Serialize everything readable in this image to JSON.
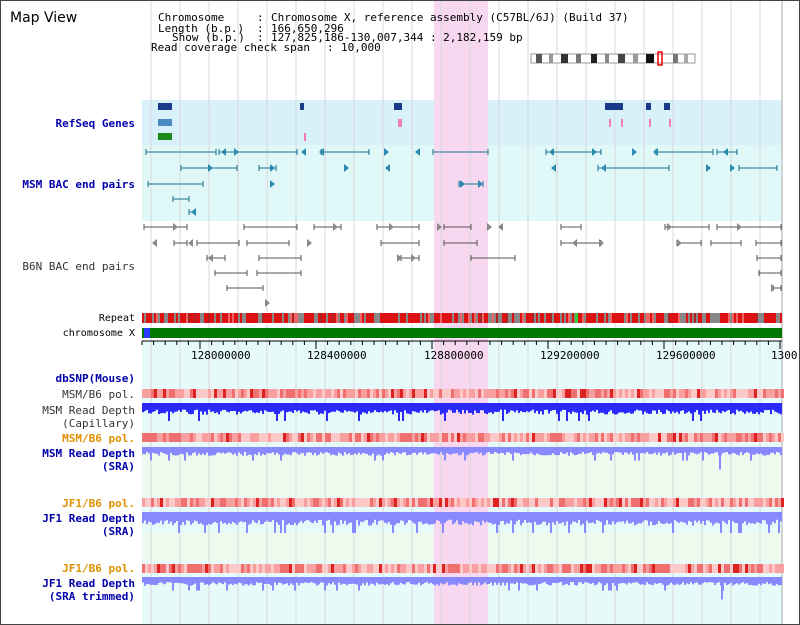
{
  "title": "Map View",
  "header": {
    "chromosome_label": "Chromosome",
    "chromosome_value": "Chromosome X, reference assembly (C57BL/6J) (Build 37)",
    "length_label": "Length (b.p.)",
    "length_value": "166,650,296",
    "show_label": "Show (b.p.)",
    "show_value": "127,825,186-130,007,344 : 2,182,159 bp",
    "coverage_label": "Read coverage check span",
    "coverage_value": "10,000"
  },
  "tracks": {
    "refseq": "RefSeq Genes",
    "msm_bac": "MSM BAC end pairs",
    "b6n_bac": "B6N BAC end pairs",
    "repeat": "Repeat",
    "chromosome": "chromosome X",
    "dbsnp": "dbSNP(Mouse)",
    "msm_b6_pol_1": "MSM/B6 pol.",
    "msm_depth_cap_1": "MSM Read Depth",
    "msm_depth_cap_2": "(Capillary)",
    "msm_b6_pol_2": "MSM/B6 pol.",
    "msm_depth_sra_1": "MSM Read Depth",
    "msm_depth_sra_2": "(SRA)",
    "jf1_b6_pol_1": "JF1/B6 pol.",
    "jf1_depth_sra_1": "JF1 Read Depth",
    "jf1_depth_sra_2": "(SRA)",
    "jf1_b6_pol_2": "JF1/B6 pol.",
    "jf1_depth_trim_1": "JF1 Read Depth",
    "jf1_depth_trim_2": "(SRA trimmed)"
  },
  "axis_ticks": [
    "128000000",
    "128400000",
    "128800000",
    "129200000",
    "129600000",
    "1300"
  ],
  "colors": {
    "highlight": "#f8d8f0",
    "refseq_bg": "#d8f0fa",
    "msm_bg": "#e0f8f8",
    "chrom_bar": "#007700",
    "depth_blue": "#2a2aff",
    "depth_light": "#8888ff",
    "pol_pink": "#ffb0b0"
  }
}
